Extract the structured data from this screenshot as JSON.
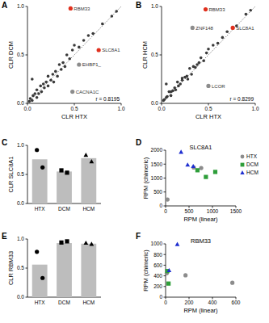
{
  "chart_data": [
    {
      "type": "scatter",
      "panel": "A",
      "xlabel": "CLR HTX",
      "ylabel": "CLR DCM",
      "annotation": "r = 0.8195",
      "line_style": "dotted",
      "xlim": [
        0,
        1
      ],
      "ylim": [
        0,
        1
      ],
      "xticks": [
        {
          "value": 0,
          "label": "0.0"
        },
        {
          "value": 0.5,
          "label": "0.5"
        },
        {
          "value": 1,
          "label": "1.0"
        }
      ],
      "yticks": [
        {
          "value": 0,
          "label": "0.0"
        },
        {
          "value": 0.5,
          "label": "0.5"
        },
        {
          "value": 1,
          "label": "1.0"
        }
      ],
      "series": [
        {
          "color": "#3a3a3a",
          "x": [
            0.02,
            0.03,
            0.05,
            0.06,
            0.08,
            0.1,
            0.1,
            0.12,
            0.14,
            0.15,
            0.17,
            0.18,
            0.2,
            0.22,
            0.22,
            0.25,
            0.27,
            0.28,
            0.3,
            0.32,
            0.34,
            0.36,
            0.38,
            0.4,
            0.42,
            0.45,
            0.48,
            0.5,
            0.55,
            0.6,
            0.65,
            0.7,
            0.8,
            0.9,
            0.95,
            0.05
          ],
          "values": [
            0.02,
            0.05,
            0.03,
            0.08,
            0.1,
            0.06,
            0.14,
            0.1,
            0.18,
            0.12,
            0.2,
            0.16,
            0.22,
            0.18,
            0.28,
            0.24,
            0.3,
            0.22,
            0.33,
            0.28,
            0.4,
            0.35,
            0.42,
            0.38,
            0.5,
            0.46,
            0.55,
            0.6,
            0.58,
            0.65,
            0.7,
            0.72,
            0.82,
            0.9,
            0.95,
            0.25
          ]
        },
        {
          "color": "#e0301e",
          "x": [
            0.46,
            0.76
          ],
          "values": [
            0.98,
            0.55
          ],
          "labels": [
            "RBM33",
            "SLC8A1"
          ]
        },
        {
          "color": "#8c8c8c",
          "x": [
            0.55,
            0.48
          ],
          "values": [
            0.4,
            0.12
          ],
          "labels": [
            "EHBP1_",
            "CACNA1C"
          ]
        }
      ]
    },
    {
      "type": "scatter",
      "panel": "B",
      "xlabel": "CLR HTX",
      "ylabel": "CLR HCM",
      "annotation": "r = 0.8299",
      "line_style": "dotted",
      "xlim": [
        0,
        1
      ],
      "ylim": [
        0,
        1
      ],
      "xticks": [
        {
          "value": 0,
          "label": "0.0"
        },
        {
          "value": 0.5,
          "label": "0.5"
        },
        {
          "value": 1,
          "label": "1.0"
        }
      ],
      "yticks": [
        {
          "value": 0,
          "label": "0.0"
        },
        {
          "value": 0.5,
          "label": "0.5"
        },
        {
          "value": 1,
          "label": "1.0"
        }
      ],
      "series": [
        {
          "color": "#3a3a3a",
          "x": [
            0.02,
            0.03,
            0.05,
            0.06,
            0.08,
            0.1,
            0.1,
            0.12,
            0.14,
            0.15,
            0.17,
            0.18,
            0.2,
            0.22,
            0.22,
            0.25,
            0.27,
            0.28,
            0.3,
            0.32,
            0.34,
            0.36,
            0.38,
            0.4,
            0.42,
            0.45,
            0.48,
            0.5,
            0.55,
            0.6,
            0.65,
            0.7,
            0.8,
            0.9,
            0.95,
            0.05
          ],
          "values": [
            0.03,
            0.04,
            0.06,
            0.07,
            0.12,
            0.08,
            0.12,
            0.13,
            0.16,
            0.14,
            0.22,
            0.18,
            0.2,
            0.24,
            0.26,
            0.27,
            0.28,
            0.25,
            0.36,
            0.3,
            0.38,
            0.37,
            0.4,
            0.42,
            0.47,
            0.44,
            0.52,
            0.56,
            0.6,
            0.62,
            0.68,
            0.74,
            0.8,
            0.92,
            0.96,
            0.2
          ]
        },
        {
          "color": "#e0301e",
          "x": [
            0.47,
            0.76
          ],
          "values": [
            0.97,
            0.78
          ],
          "labels": [
            "RBM33",
            "SLC8A1"
          ]
        },
        {
          "color": "#8c8c8c",
          "x": [
            0.33,
            0.5
          ],
          "values": [
            0.78,
            0.18
          ],
          "labels": [
            "ZNF148",
            "LCOR"
          ]
        }
      ]
    },
    {
      "type": "bar",
      "panel": "C",
      "ylabel": "CLR SLC8A1",
      "categories": [
        "HTX",
        "DCM",
        "HCM"
      ],
      "values": [
        0.76,
        0.55,
        0.78
      ],
      "color": "#bdbdbd",
      "ylim": [
        0,
        1
      ],
      "yticks": [
        {
          "value": 0,
          "label": "0.0"
        },
        {
          "value": 0.5,
          "label": "0.5"
        },
        {
          "value": 1,
          "label": "1.0"
        }
      ],
      "points": [
        {
          "marker": "circle",
          "values": [
            0.92,
            0.62
          ]
        },
        {
          "marker": "square",
          "values": [
            0.57,
            0.53
          ]
        },
        {
          "marker": "triangle",
          "values": [
            0.83,
            0.72
          ]
        }
      ]
    },
    {
      "type": "scatter",
      "panel": "D",
      "title": "SLC8A1",
      "xlabel": "RPM (linear)",
      "ylabel": "RPM (chimeric)",
      "legend": "right",
      "xlim": [
        0,
        1500
      ],
      "ylim": [
        0,
        2000
      ],
      "xticks": [
        0,
        500,
        1000,
        1500
      ],
      "yticks": [
        0,
        500,
        1000,
        1500,
        2000
      ],
      "series": [
        {
          "name": "HTX",
          "color": "#8c8c8c",
          "marker": "circle",
          "x": [
            40,
            600,
            760
          ],
          "values": [
            230,
            1380,
            1360
          ]
        },
        {
          "name": "DCM",
          "color": "#2e9e3a",
          "marker": "square",
          "x": [
            680,
            860,
            1060
          ],
          "values": [
            1280,
            1040,
            1220
          ]
        },
        {
          "name": "HCM",
          "color": "#1f2fd0",
          "marker": "triangle",
          "x": [
            330,
            470,
            590
          ],
          "values": [
            1930,
            1470,
            1420
          ]
        }
      ]
    },
    {
      "type": "bar",
      "panel": "E",
      "ylabel": "CLR RBM33",
      "categories": [
        "HTX",
        "DCM",
        "HCM"
      ],
      "values": [
        0.56,
        0.93,
        0.92
      ],
      "color": "#bdbdbd",
      "ylim": [
        0,
        1
      ],
      "yticks": [
        {
          "value": 0,
          "label": "0.0"
        },
        {
          "value": 0.5,
          "label": "0.5"
        },
        {
          "value": 1,
          "label": "1.0"
        }
      ],
      "points": [
        {
          "marker": "circle",
          "values": [
            0.78,
            0.33
          ]
        },
        {
          "marker": "square",
          "values": [
            0.94,
            0.96
          ]
        },
        {
          "marker": "triangle",
          "values": [
            0.93,
            0.91
          ]
        }
      ]
    },
    {
      "type": "scatter",
      "panel": "F",
      "title": "RBM33",
      "xlabel": "RPM (linear)",
      "ylabel": "RPM (chimeric)",
      "xlim": [
        0,
        600
      ],
      "ylim": [
        0,
        1000
      ],
      "xticks": [
        0,
        200,
        400,
        600
      ],
      "yticks": [
        0,
        200,
        400,
        600,
        800,
        1000
      ],
      "series": [
        {
          "name": "HTX",
          "color": "#8c8c8c",
          "marker": "circle",
          "x": [
            10,
            170,
            570
          ],
          "values": [
            450,
            410,
            270
          ]
        },
        {
          "name": "DCM",
          "color": "#2e9e3a",
          "marker": "square",
          "x": [
            15,
            25
          ],
          "values": [
            490,
            255
          ]
        },
        {
          "name": "HCM",
          "color": "#1f2fd0",
          "marker": "triangle",
          "x": [
            30,
            100
          ],
          "values": [
            500,
            990
          ]
        }
      ]
    }
  ]
}
